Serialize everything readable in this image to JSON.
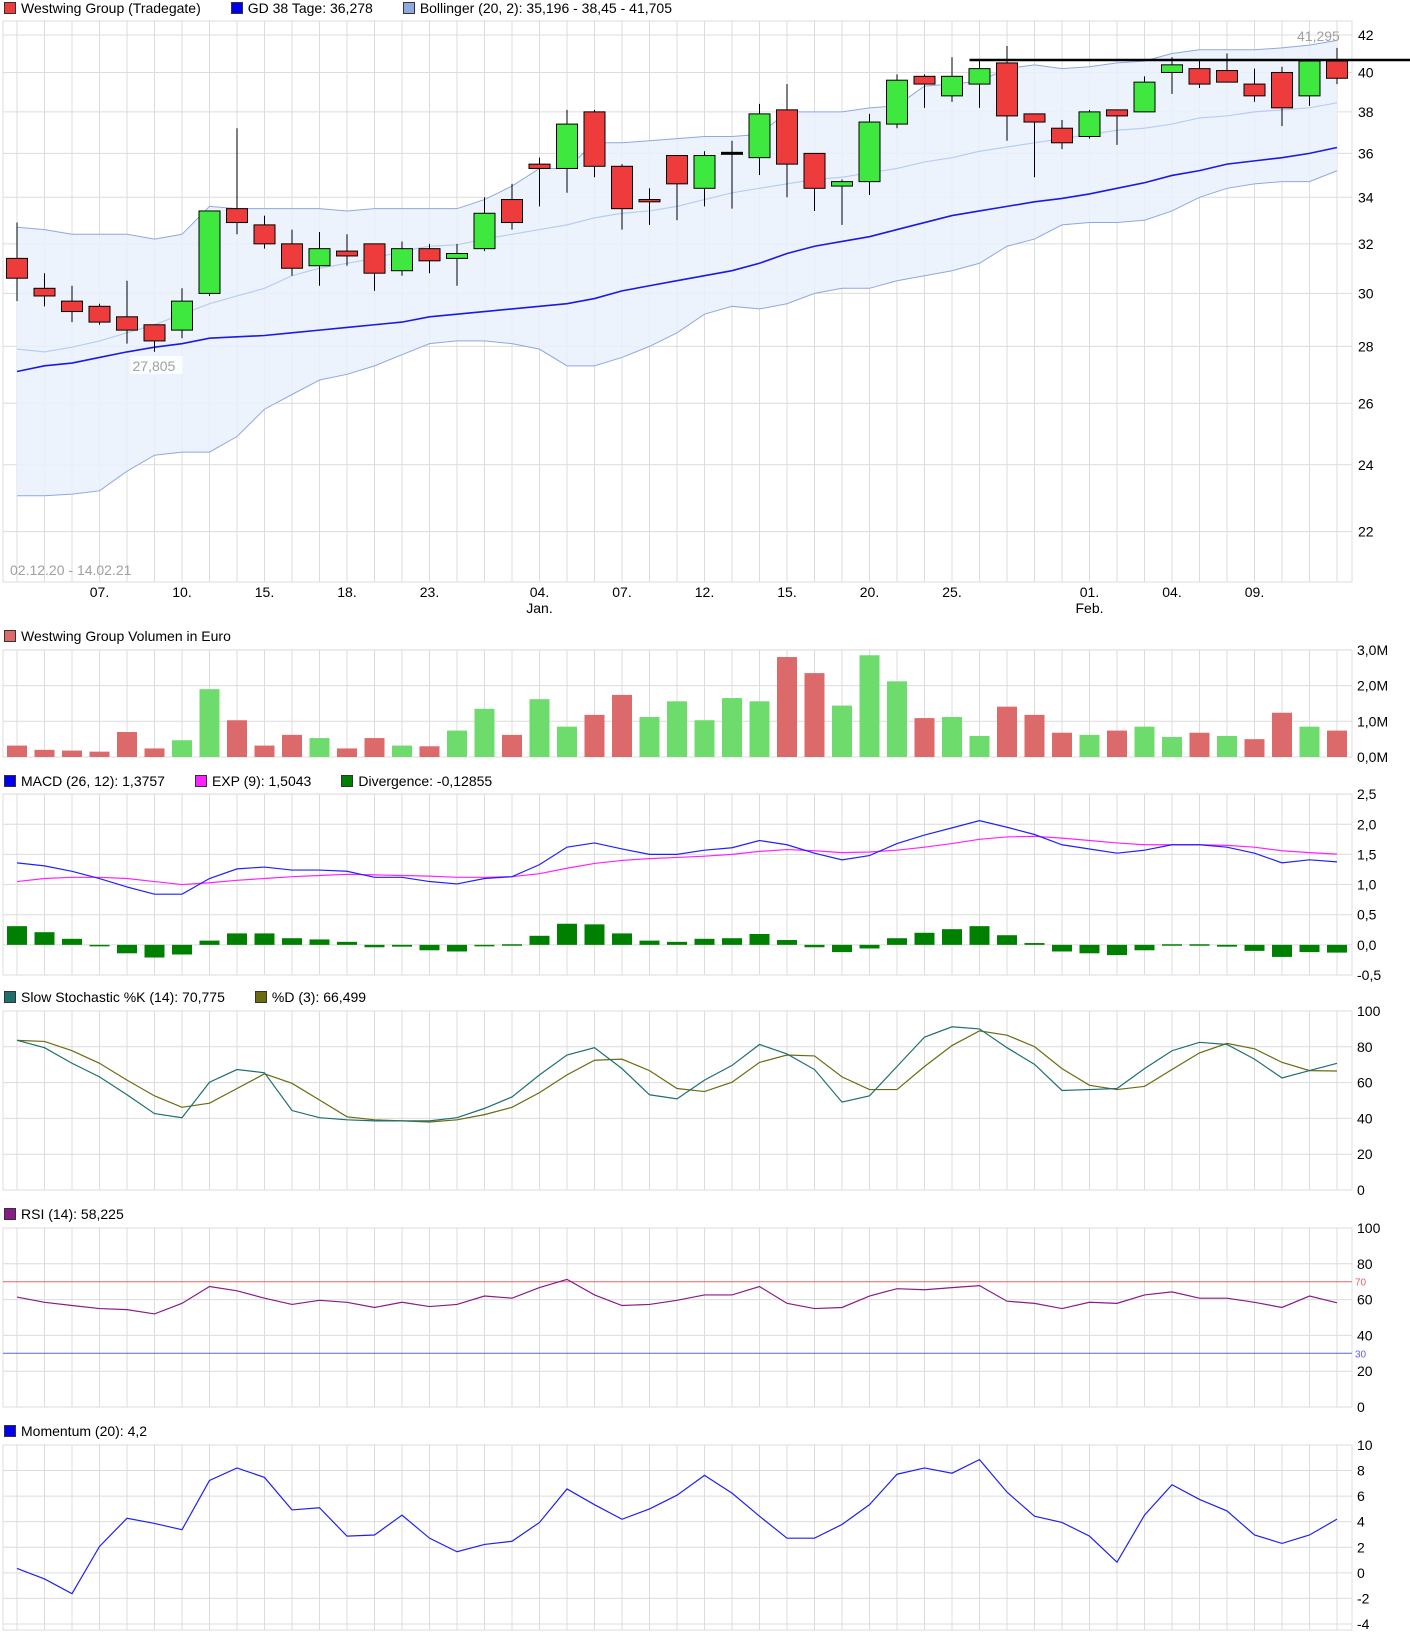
{
  "colors": {
    "up": "#3ee83e",
    "down": "#ee3c3c",
    "doji": "#000000",
    "vol_up": "#6ddc6d",
    "vol_down": "#dc6a6a",
    "gd38": "#1a1ae6",
    "bollinger": "#8fa8e0",
    "band_fill": "#eaf1fd",
    "macd": "#2020ff",
    "signal": "#ff22ff",
    "divergence": "#008000",
    "stoch_k": "#1f6f6f",
    "stoch_d": "#6b6b10",
    "rsi": "#8a1a8a",
    "rsi_70": "#ee6060",
    "rsi_30": "#6060ee",
    "momentum": "#2020ee",
    "grid": "#dcdcdc"
  },
  "legends": {
    "price": [
      {
        "label": "Westwing Group (Tradegate)",
        "color": "#ee3c3c"
      },
      {
        "label": "GD 38 Tage: 36,278",
        "color": "#0000ee"
      },
      {
        "label": "Bollinger (20, 2): 35,196 - 38,45 - 41,705",
        "color": "#8fa8e0"
      }
    ],
    "volume": [
      {
        "label": "Westwing Group Volumen in Euro",
        "color": "#dc6a6a"
      }
    ],
    "macd": [
      {
        "label": "MACD (26, 12): 1,3757",
        "color": "#0000ee"
      },
      {
        "label": "EXP (9): 1,5043",
        "color": "#ff22ff"
      },
      {
        "label": "Divergence: -0,12855",
        "color": "#008000"
      }
    ],
    "stoch": [
      {
        "label": "Slow Stochastic %K (14): 70,775",
        "color": "#1f6f6f"
      },
      {
        "label": "%D (3): 66,499",
        "color": "#6b6b10"
      }
    ],
    "rsi": [
      {
        "label": "RSI (14): 58,225",
        "color": "#8a1a8a"
      }
    ],
    "momentum": [
      {
        "label": "Momentum (20): 4,2",
        "color": "#0000ee"
      }
    ]
  },
  "chart_data": [
    {
      "type": "candlestick",
      "scale": "log",
      "date_range": "02.12.20 - 14.02.21",
      "ylim": [
        21,
        42.5
      ],
      "yticks": [
        "42",
        "40",
        "38",
        "36",
        "34",
        "32",
        "30",
        "28",
        "26",
        "24",
        "22"
      ],
      "x_labels": [
        {
          "index": 3,
          "label": "07."
        },
        {
          "index": 6,
          "label": "10."
        },
        {
          "index": 9,
          "label": "15."
        },
        {
          "index": 12,
          "label": "18."
        },
        {
          "index": 15,
          "label": "23."
        },
        {
          "index": 19,
          "label": "04.",
          "sub": "Jan."
        },
        {
          "index": 22,
          "label": "07."
        },
        {
          "index": 25,
          "label": "12."
        },
        {
          "index": 28,
          "label": "15."
        },
        {
          "index": 31,
          "label": "20."
        },
        {
          "index": 34,
          "label": "25."
        },
        {
          "index": 39,
          "label": "01.",
          "sub": "Feb."
        },
        {
          "index": 42,
          "label": "04."
        },
        {
          "index": 45,
          "label": "09."
        }
      ],
      "ohlc": [
        [
          31.4,
          32.9,
          29.7,
          30.6
        ],
        [
          30.2,
          30.8,
          29.5,
          29.9
        ],
        [
          29.7,
          30.3,
          28.9,
          29.3
        ],
        [
          29.5,
          29.6,
          28.8,
          28.9
        ],
        [
          29.1,
          30.5,
          28.1,
          28.6
        ],
        [
          28.8,
          28.8,
          27.805,
          28.2
        ],
        [
          28.6,
          30.2,
          28.3,
          29.7
        ],
        [
          30.0,
          33.4,
          29.9,
          33.4
        ],
        [
          33.5,
          37.2,
          32.4,
          32.9
        ],
        [
          32.8,
          33.2,
          31.8,
          32.0
        ],
        [
          32.0,
          32.6,
          30.7,
          31.0
        ],
        [
          31.1,
          32.5,
          30.3,
          31.8
        ],
        [
          31.7,
          32.4,
          31.1,
          31.5
        ],
        [
          32.0,
          32.0,
          30.1,
          30.8
        ],
        [
          30.9,
          32.1,
          30.7,
          31.8
        ],
        [
          31.8,
          32.0,
          30.8,
          31.3
        ],
        [
          31.4,
          32.0,
          30.3,
          31.6
        ],
        [
          31.8,
          34.0,
          31.7,
          33.3
        ],
        [
          33.9,
          34.6,
          32.6,
          32.9
        ],
        [
          35.5,
          35.8,
          33.6,
          35.3
        ],
        [
          35.3,
          38.1,
          34.2,
          37.4
        ],
        [
          38.0,
          38.1,
          34.9,
          35.4
        ],
        [
          35.4,
          35.5,
          32.6,
          33.5
        ],
        [
          33.9,
          34.4,
          32.8,
          33.8
        ],
        [
          35.9,
          35.9,
          33.0,
          34.6
        ],
        [
          34.4,
          36.1,
          33.6,
          35.9
        ],
        [
          36.05,
          36.6,
          33.5,
          36.05
        ],
        [
          35.8,
          38.4,
          35.0,
          37.9
        ],
        [
          38.1,
          39.4,
          34.0,
          35.5
        ],
        [
          36.0,
          36.0,
          33.4,
          34.4
        ],
        [
          34.5,
          34.8,
          32.8,
          34.7
        ],
        [
          34.7,
          37.9,
          34.1,
          37.5
        ],
        [
          37.4,
          39.9,
          37.2,
          39.6
        ],
        [
          39.8,
          39.9,
          38.2,
          39.4
        ],
        [
          38.8,
          40.8,
          38.5,
          39.8
        ],
        [
          39.4,
          40.6,
          38.2,
          40.2
        ],
        [
          40.5,
          41.4,
          36.6,
          37.8
        ],
        [
          37.9,
          37.9,
          34.9,
          37.5
        ],
        [
          37.2,
          37.6,
          36.2,
          36.5
        ],
        [
          36.8,
          38.1,
          36.7,
          38.0
        ],
        [
          38.1,
          38.1,
          36.4,
          37.8
        ],
        [
          38.0,
          39.8,
          38.0,
          39.5
        ],
        [
          40.0,
          40.8,
          38.9,
          40.4
        ],
        [
          40.2,
          40.6,
          39.2,
          39.4
        ],
        [
          40.1,
          41.0,
          39.5,
          39.5
        ],
        [
          39.4,
          40.2,
          38.5,
          38.8
        ],
        [
          40.0,
          40.3,
          37.3,
          38.2
        ],
        [
          38.8,
          40.6,
          38.3,
          40.6
        ],
        [
          40.6,
          41.3,
          39.4,
          39.7
        ]
      ],
      "gd38": [
        27.1,
        27.3,
        27.4,
        27.6,
        27.8,
        27.97,
        28.1,
        28.3,
        28.35,
        28.4,
        28.5,
        28.6,
        28.7,
        28.8,
        28.9,
        29.1,
        29.2,
        29.3,
        29.4,
        29.5,
        29.6,
        29.8,
        30.1,
        30.3,
        30.5,
        30.7,
        30.9,
        31.2,
        31.6,
        31.9,
        32.1,
        32.3,
        32.6,
        32.9,
        33.2,
        33.4,
        33.6,
        33.8,
        33.95,
        34.15,
        34.4,
        34.65,
        34.98,
        35.2,
        35.5,
        35.65,
        35.8,
        36.0,
        36.278
      ],
      "bollinger_upper": [
        32.7,
        32.6,
        32.4,
        32.4,
        32.4,
        32.2,
        32.4,
        33.6,
        33.5,
        33.5,
        33.5,
        33.5,
        33.4,
        33.5,
        33.5,
        33.5,
        33.5,
        33.9,
        34.5,
        35.3,
        35.3,
        36.5,
        36.5,
        36.6,
        36.7,
        36.8,
        36.8,
        36.9,
        38.0,
        38.0,
        38.0,
        38.2,
        38.3,
        39.3,
        39.4,
        39.55,
        40.2,
        40.4,
        40.2,
        40.3,
        40.5,
        40.6,
        41.0,
        41.2,
        41.2,
        41.2,
        41.3,
        41.45,
        41.705
      ],
      "bollinger_middle": [
        27.9,
        27.8,
        27.97,
        28.2,
        28.5,
        28.8,
        29.2,
        29.6,
        29.9,
        30.2,
        30.7,
        31.0,
        31.2,
        31.4,
        31.7,
        31.9,
        31.96,
        32.2,
        32.4,
        32.6,
        32.8,
        33.1,
        33.3,
        33.4,
        33.6,
        33.9,
        34.2,
        34.4,
        34.6,
        34.8,
        34.9,
        35.1,
        35.3,
        35.6,
        35.8,
        36.1,
        36.3,
        36.5,
        36.7,
        36.9,
        37.1,
        37.2,
        37.4,
        37.7,
        37.8,
        38.0,
        38.1,
        38.2,
        38.45
      ],
      "bollinger_lower": [
        23.05,
        23.05,
        23.1,
        23.2,
        23.8,
        24.3,
        24.4,
        24.4,
        24.9,
        25.8,
        26.3,
        26.8,
        27.0,
        27.3,
        27.7,
        28.1,
        28.2,
        28.2,
        28.1,
        27.9,
        27.3,
        27.3,
        27.6,
        28.0,
        28.5,
        29.2,
        29.5,
        29.4,
        29.6,
        30.0,
        30.2,
        30.2,
        30.5,
        30.7,
        30.9,
        31.2,
        31.9,
        32.2,
        32.8,
        32.9,
        32.9,
        33.0,
        33.4,
        34.0,
        34.4,
        34.6,
        34.7,
        34.7,
        35.196
      ],
      "annotations": [
        {
          "label": "41,295",
          "value": 41.295,
          "type": "resistance",
          "from_index": 35
        },
        {
          "label": "27,805",
          "value": 27.805,
          "index": 5
        }
      ]
    },
    {
      "type": "bar",
      "title": "Westwing Group Volumen in Euro",
      "unit": "M",
      "ylim": [
        0,
        3
      ],
      "yticks": [
        "3,0M",
        "2,0M",
        "1,0M",
        "0,0M"
      ],
      "values": [
        0.32,
        0.2,
        0.18,
        0.15,
        0.7,
        0.24,
        0.47,
        1.9,
        1.03,
        0.32,
        0.62,
        0.53,
        0.24,
        0.53,
        0.32,
        0.3,
        0.74,
        1.35,
        0.62,
        1.62,
        0.85,
        1.18,
        1.74,
        1.12,
        1.56,
        1.03,
        1.65,
        1.56,
        2.8,
        2.35,
        1.44,
        2.85,
        2.12,
        1.09,
        1.12,
        0.59,
        1.41,
        1.18,
        0.68,
        0.62,
        0.74,
        0.85,
        0.56,
        0.68,
        0.59,
        0.5,
        1.24,
        0.85,
        0.74
      ],
      "up": [
        0,
        0,
        0,
        0,
        0,
        0,
        1,
        1,
        0,
        0,
        0,
        1,
        0,
        0,
        1,
        0,
        1,
        1,
        0,
        1,
        1,
        0,
        0,
        1,
        1,
        1,
        1,
        1,
        0,
        0,
        1,
        1,
        1,
        0,
        1,
        1,
        0,
        0,
        0,
        1,
        0,
        1,
        1,
        0,
        1,
        0,
        0,
        1,
        0
      ]
    },
    {
      "type": "line",
      "ylim": [
        -0.5,
        2.5
      ],
      "yticks": [
        "2,5",
        "2,0",
        "1,5",
        "1,0",
        "0,5",
        "0,0",
        "-0,5"
      ],
      "macd": [
        1.36,
        1.31,
        1.22,
        1.1,
        0.96,
        0.84,
        0.84,
        1.1,
        1.26,
        1.29,
        1.24,
        1.24,
        1.22,
        1.12,
        1.12,
        1.05,
        1.01,
        1.1,
        1.13,
        1.33,
        1.62,
        1.69,
        1.59,
        1.5,
        1.5,
        1.57,
        1.61,
        1.73,
        1.66,
        1.52,
        1.41,
        1.48,
        1.68,
        1.82,
        1.94,
        2.06,
        1.95,
        1.83,
        1.66,
        1.59,
        1.52,
        1.57,
        1.66,
        1.66,
        1.62,
        1.52,
        1.36,
        1.41,
        1.3757
      ],
      "signal": [
        1.05,
        1.1,
        1.12,
        1.12,
        1.1,
        1.05,
        1.0,
        1.03,
        1.07,
        1.1,
        1.13,
        1.15,
        1.17,
        1.16,
        1.15,
        1.14,
        1.12,
        1.12,
        1.13,
        1.18,
        1.27,
        1.35,
        1.4,
        1.43,
        1.45,
        1.47,
        1.5,
        1.55,
        1.58,
        1.56,
        1.53,
        1.54,
        1.57,
        1.62,
        1.68,
        1.75,
        1.79,
        1.8,
        1.77,
        1.73,
        1.69,
        1.66,
        1.66,
        1.66,
        1.65,
        1.62,
        1.56,
        1.53,
        1.5043
      ],
      "divergence": [
        0.31,
        0.21,
        0.1,
        -0.02,
        -0.14,
        -0.21,
        -0.16,
        0.07,
        0.19,
        0.19,
        0.11,
        0.09,
        0.05,
        -0.04,
        -0.03,
        -0.09,
        -0.11,
        -0.02,
        0.01,
        0.15,
        0.35,
        0.34,
        0.19,
        0.07,
        0.05,
        0.1,
        0.11,
        0.18,
        0.08,
        -0.04,
        -0.12,
        -0.06,
        0.11,
        0.2,
        0.26,
        0.31,
        0.16,
        0.03,
        -0.11,
        -0.14,
        -0.17,
        -0.09,
        0.01,
        0.01,
        -0.03,
        -0.1,
        -0.2,
        -0.12,
        -0.12855
      ]
    },
    {
      "type": "line",
      "ylim": [
        0,
        100
      ],
      "yticks": [
        "100",
        "80",
        "60",
        "40",
        "20",
        "0"
      ],
      "k": [
        83.6,
        79.5,
        70.8,
        63.2,
        53.2,
        42.7,
        40.4,
        60.2,
        67.3,
        65.5,
        44.4,
        40.4,
        39.2,
        38.6,
        38.6,
        38.6,
        40.4,
        45.6,
        52,
        64.3,
        75.4,
        79.5,
        67.8,
        53.2,
        50.9,
        61.4,
        69.6,
        81.3,
        76,
        67.3,
        49.1,
        52.6,
        69,
        85.4,
        91.2,
        90,
        79.5,
        70.2,
        55.6,
        56.1,
        56.7,
        67.8,
        77.8,
        82.5,
        81.3,
        73.1,
        62.6,
        66.7,
        70.775
      ],
      "d": [
        83.6,
        83,
        77.8,
        70.8,
        61.4,
        52.6,
        46.2,
        48.5,
        56.7,
        64.9,
        59.6,
        50.3,
        40.9,
        39.2,
        38.6,
        38,
        39.2,
        42.1,
        46.2,
        54.4,
        64.3,
        72.5,
        73.1,
        66.7,
        56.7,
        55,
        60.2,
        71.3,
        75.4,
        74.9,
        63.2,
        56.1,
        56.1,
        69,
        80.7,
        88.9,
        86.5,
        80.1,
        67.8,
        58.5,
        56.1,
        57.9,
        67.3,
        76.6,
        81.9,
        78.9,
        71.3,
        66.7,
        66.499
      ]
    },
    {
      "type": "line",
      "ylim": [
        0,
        100
      ],
      "yticks": [
        "100",
        "80",
        "60",
        "40",
        "20",
        "0"
      ],
      "levels": [
        {
          "value": 70,
          "label": "70"
        },
        {
          "value": 30,
          "label": "30"
        }
      ],
      "values": [
        61.4,
        58.5,
        56.7,
        55,
        54.4,
        52,
        57.9,
        67.3,
        64.9,
        60.8,
        57.3,
        59.6,
        58.5,
        55.6,
        58.5,
        56.1,
        57.3,
        62,
        60.8,
        66.7,
        71.3,
        62.6,
        56.7,
        57.3,
        59.6,
        62.6,
        62.6,
        67.3,
        57.9,
        55,
        55.6,
        62,
        66.1,
        65.5,
        66.7,
        67.8,
        59.1,
        57.9,
        55,
        58.5,
        57.9,
        62.6,
        64.3,
        60.8,
        60.8,
        58.5,
        55.6,
        62,
        58.225
      ]
    },
    {
      "type": "line",
      "ylim": [
        -4,
        10
      ],
      "yticks": [
        "10",
        "8",
        "6",
        "4",
        "2",
        "0",
        "-2",
        "-4"
      ],
      "values": [
        0.34,
        -0.48,
        -1.63,
        2.06,
        4.27,
        3.86,
        3.37,
        7.22,
        8.2,
        7.46,
        4.92,
        5.09,
        2.87,
        2.96,
        4.51,
        2.71,
        1.65,
        2.22,
        2.47,
        3.94,
        6.56,
        5.33,
        4.19,
        5.0,
        6.07,
        7.62,
        6.23,
        4.43,
        2.71,
        2.71,
        3.78,
        5.33,
        7.71,
        8.2,
        7.79,
        8.85,
        6.31,
        4.43,
        3.94,
        2.87,
        0.83,
        4.51,
        6.89,
        5.74,
        4.84,
        2.96,
        2.3,
        2.96,
        4.2
      ]
    }
  ]
}
